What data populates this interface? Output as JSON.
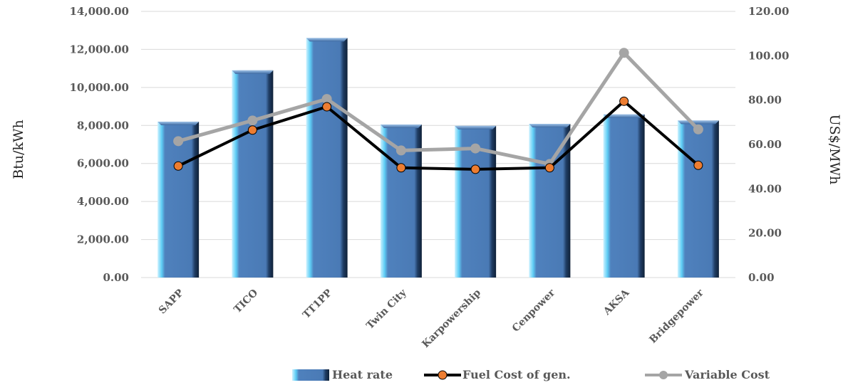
{
  "chart_data": {
    "type": "bar",
    "categories": [
      "SAPP",
      "TICO",
      "TT1PP",
      "Twin City",
      "Karpowership",
      "Cenpower",
      "AKSA",
      "Bridgepower"
    ],
    "series": [
      {
        "name": "Heat rate",
        "type": "bar",
        "axis": "left",
        "values": [
          8200,
          10900,
          12600,
          8050,
          7980,
          8080,
          8580,
          8260
        ]
      },
      {
        "name": "Fuel Cost of gen.",
        "type": "line",
        "axis": "right",
        "color": "#000000",
        "marker_color": "#ed7d31",
        "values": [
          50.3,
          66.5,
          77.0,
          49.5,
          48.8,
          49.5,
          79.5,
          50.6
        ]
      },
      {
        "name": "Variable Cost",
        "type": "line",
        "axis": "right",
        "color": "#a5a5a5",
        "values": [
          61.5,
          70.8,
          80.5,
          57.3,
          58.2,
          51.2,
          101.3,
          66.8
        ]
      }
    ],
    "ylabel": "Btu/kWh",
    "y2label": "US$/MWh",
    "ylim": [
      0,
      14000
    ],
    "y2lim": [
      0,
      120
    ],
    "yticks": [
      "0.00",
      "2,000.00",
      "4,000.00",
      "6,000.00",
      "8,000.00",
      "10,000.00",
      "12,000.00",
      "14,000.00"
    ],
    "y2ticks": [
      "0.00",
      "20.00",
      "40.00",
      "60.00",
      "80.00",
      "100.00",
      "120.00"
    ],
    "grid": true,
    "legend_position": "bottom-right",
    "colors": {
      "bar": "#4f81bd",
      "fuel_line": "#000000",
      "fuel_marker": "#ed7d31",
      "variable": "#a5a5a5"
    }
  }
}
